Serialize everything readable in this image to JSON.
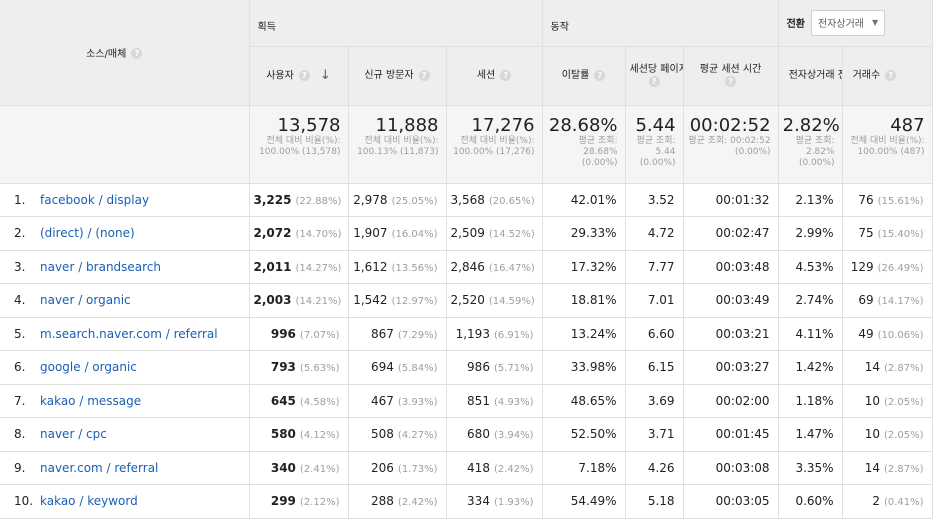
{
  "groups": {
    "acquisition": "획득",
    "behavior": "동작",
    "conversion": "전환"
  },
  "goal_select": {
    "value": "전자상거래"
  },
  "columns": {
    "source": "소스/매체",
    "users": "사용자",
    "new_users": "신규 방문자",
    "sessions": "세션",
    "bounce_rate": "이탈률",
    "pages_per_session": "세션당 페이지수",
    "avg_session_duration": "평균 세션 시간",
    "ecommerce_conversion_rate": "전자상거래 전환율",
    "transactions": "거래수"
  },
  "totals": {
    "users": {
      "value": "13,578",
      "sub": "전체 대비 비율(%): 100.00% (13,578)"
    },
    "new_users": {
      "value": "11,888",
      "sub": "전체 대비 비율(%): 100.13% (11,873)"
    },
    "sessions": {
      "value": "17,276",
      "sub": "전체 대비 비율(%): 100.00% (17,276)"
    },
    "bounce_rate": {
      "value": "28.68%",
      "sub": "평균 조회: 28.68% (0.00%)"
    },
    "pages_per_session": {
      "value": "5.44",
      "sub": "평균 조회: 5.44 (0.00%)"
    },
    "avg_session_duration": {
      "value": "00:02:52",
      "sub": "평균 조회: 00:02:52 (0.00%)"
    },
    "ecommerce_conversion_rate": {
      "value": "2.82%",
      "sub": "평균 조회: 2.82% (0.00%)"
    },
    "transactions": {
      "value": "487",
      "sub": "전체 대비 비율(%): 100.00% (487)"
    }
  },
  "rows": [
    {
      "idx": "1.",
      "source": "facebook / display",
      "users": "3,225",
      "users_pct": "(22.88%)",
      "new_users": "2,978",
      "new_users_pct": "(25.05%)",
      "sessions": "3,568",
      "sessions_pct": "(20.65%)",
      "bounce_rate": "42.01%",
      "pages_per_session": "3.52",
      "avg_session_duration": "00:01:32",
      "conversion_rate": "2.13%",
      "transactions": "76",
      "transactions_pct": "(15.61%)"
    },
    {
      "idx": "2.",
      "source": "(direct) / (none)",
      "users": "2,072",
      "users_pct": "(14.70%)",
      "new_users": "1,907",
      "new_users_pct": "(16.04%)",
      "sessions": "2,509",
      "sessions_pct": "(14.52%)",
      "bounce_rate": "29.33%",
      "pages_per_session": "4.72",
      "avg_session_duration": "00:02:47",
      "conversion_rate": "2.99%",
      "transactions": "75",
      "transactions_pct": "(15.40%)"
    },
    {
      "idx": "3.",
      "source": "naver / brandsearch",
      "users": "2,011",
      "users_pct": "(14.27%)",
      "new_users": "1,612",
      "new_users_pct": "(13.56%)",
      "sessions": "2,846",
      "sessions_pct": "(16.47%)",
      "bounce_rate": "17.32%",
      "pages_per_session": "7.77",
      "avg_session_duration": "00:03:48",
      "conversion_rate": "4.53%",
      "transactions": "129",
      "transactions_pct": "(26.49%)"
    },
    {
      "idx": "4.",
      "source": "naver / organic",
      "users": "2,003",
      "users_pct": "(14.21%)",
      "new_users": "1,542",
      "new_users_pct": "(12.97%)",
      "sessions": "2,520",
      "sessions_pct": "(14.59%)",
      "bounce_rate": "18.81%",
      "pages_per_session": "7.01",
      "avg_session_duration": "00:03:49",
      "conversion_rate": "2.74%",
      "transactions": "69",
      "transactions_pct": "(14.17%)"
    },
    {
      "idx": "5.",
      "source": "m.search.naver.com / referral",
      "users": "996",
      "users_pct": "(7.07%)",
      "new_users": "867",
      "new_users_pct": "(7.29%)",
      "sessions": "1,193",
      "sessions_pct": "(6.91%)",
      "bounce_rate": "13.24%",
      "pages_per_session": "6.60",
      "avg_session_duration": "00:03:21",
      "conversion_rate": "4.11%",
      "transactions": "49",
      "transactions_pct": "(10.06%)"
    },
    {
      "idx": "6.",
      "source": "google / organic",
      "users": "793",
      "users_pct": "(5.63%)",
      "new_users": "694",
      "new_users_pct": "(5.84%)",
      "sessions": "986",
      "sessions_pct": "(5.71%)",
      "bounce_rate": "33.98%",
      "pages_per_session": "6.15",
      "avg_session_duration": "00:03:27",
      "conversion_rate": "1.42%",
      "transactions": "14",
      "transactions_pct": "(2.87%)"
    },
    {
      "idx": "7.",
      "source": "kakao / message",
      "users": "645",
      "users_pct": "(4.58%)",
      "new_users": "467",
      "new_users_pct": "(3.93%)",
      "sessions": "851",
      "sessions_pct": "(4.93%)",
      "bounce_rate": "48.65%",
      "pages_per_session": "3.69",
      "avg_session_duration": "00:02:00",
      "conversion_rate": "1.18%",
      "transactions": "10",
      "transactions_pct": "(2.05%)"
    },
    {
      "idx": "8.",
      "source": "naver / cpc",
      "users": "580",
      "users_pct": "(4.12%)",
      "new_users": "508",
      "new_users_pct": "(4.27%)",
      "sessions": "680",
      "sessions_pct": "(3.94%)",
      "bounce_rate": "52.50%",
      "pages_per_session": "3.71",
      "avg_session_duration": "00:01:45",
      "conversion_rate": "1.47%",
      "transactions": "10",
      "transactions_pct": "(2.05%)"
    },
    {
      "idx": "9.",
      "source": "naver.com / referral",
      "users": "340",
      "users_pct": "(2.41%)",
      "new_users": "206",
      "new_users_pct": "(1.73%)",
      "sessions": "418",
      "sessions_pct": "(2.42%)",
      "bounce_rate": "7.18%",
      "pages_per_session": "4.26",
      "avg_session_duration": "00:03:08",
      "conversion_rate": "3.35%",
      "transactions": "14",
      "transactions_pct": "(2.87%)"
    },
    {
      "idx": "10.",
      "source": "kakao / keyword",
      "users": "299",
      "users_pct": "(2.12%)",
      "new_users": "288",
      "new_users_pct": "(2.42%)",
      "sessions": "334",
      "sessions_pct": "(1.93%)",
      "bounce_rate": "54.49%",
      "pages_per_session": "5.18",
      "avg_session_duration": "00:03:05",
      "conversion_rate": "0.60%",
      "transactions": "2",
      "transactions_pct": "(0.41%)"
    }
  ]
}
